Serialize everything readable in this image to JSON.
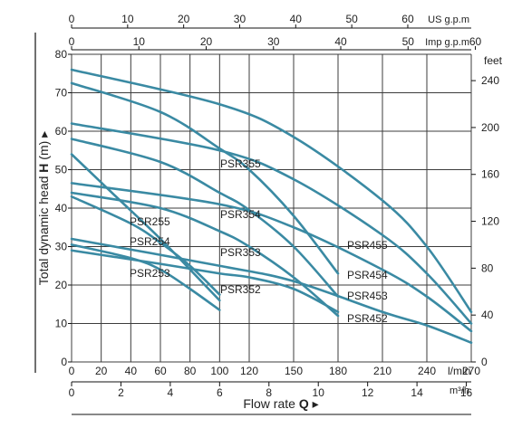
{
  "chart_data": {
    "type": "line",
    "colors": {
      "curve": "#3a8aa3",
      "grid": "#3c3c3c",
      "axis": "#111111"
    },
    "axes": {
      "x": {
        "label": "l/min",
        "ticks": [
          0,
          20,
          40,
          60,
          80,
          100,
          120,
          150,
          180,
          210,
          240,
          270
        ],
        "range": [
          0,
          270
        ]
      },
      "y": {
        "label_prefix": "Total dynamic head ",
        "label_bold": "H",
        "label_suffix": " (m) ▸",
        "ticks": [
          0,
          10,
          20,
          30,
          40,
          50,
          60,
          70,
          80
        ],
        "range": [
          0,
          80
        ]
      },
      "y_right": {
        "label": "feet",
        "ticks": [
          0,
          40,
          80,
          120,
          160,
          200,
          240
        ]
      },
      "x_us": {
        "label": "US g.p.m",
        "ticks": [
          0,
          10,
          20,
          30,
          40,
          50,
          60
        ]
      },
      "x_imp": {
        "label": "Imp g.p.m",
        "ticks": [
          0,
          10,
          20,
          30,
          40,
          50,
          60
        ]
      },
      "x_m3h": {
        "label": "m³/h",
        "ticks": [
          0,
          2,
          4,
          6,
          8,
          10,
          12,
          14,
          16
        ]
      },
      "x_title": {
        "prefix": "Flow rate ",
        "bold": "Q",
        "suffix": " ▸"
      }
    },
    "grid": true,
    "series": [
      {
        "name": "PSR253",
        "x": [
          0,
          40,
          60,
          80,
          100
        ],
        "y": [
          30.5,
          27,
          24,
          19,
          13.5
        ]
      },
      {
        "name": "PSR254",
        "x": [
          0,
          40,
          60,
          80,
          100
        ],
        "y": [
          43,
          36,
          31,
          25,
          17.5
        ]
      },
      {
        "name": "PSR255",
        "x": [
          0,
          30,
          60,
          90,
          100
        ],
        "y": [
          54,
          43,
          32,
          20,
          16
        ]
      },
      {
        "name": "PSR352",
        "x": [
          0,
          60,
          100,
          120,
          150,
          180
        ],
        "y": [
          29,
          25.5,
          23,
          22,
          19,
          13
        ]
      },
      {
        "name": "PSR353",
        "x": [
          0,
          60,
          100,
          120,
          150,
          180
        ],
        "y": [
          44,
          40,
          34,
          30,
          22,
          12
        ]
      },
      {
        "name": "PSR354",
        "x": [
          0,
          60,
          100,
          120,
          150,
          180
        ],
        "y": [
          58,
          52,
          44,
          39.5,
          30,
          17
        ]
      },
      {
        "name": "PSR355",
        "x": [
          0,
          60,
          100,
          120,
          150,
          180
        ],
        "y": [
          72.5,
          65,
          55.5,
          50,
          38,
          23
        ]
      },
      {
        "name": "PSR452",
        "x": [
          0,
          100,
          150,
          210,
          240,
          270
        ],
        "y": [
          32,
          25,
          21,
          13,
          9.5,
          5
        ]
      },
      {
        "name": "PSR453",
        "x": [
          0,
          100,
          150,
          210,
          240,
          270
        ],
        "y": [
          46.5,
          41,
          35,
          24,
          17,
          8
        ]
      },
      {
        "name": "PSR454",
        "x": [
          0,
          100,
          150,
          210,
          240,
          270
        ],
        "y": [
          62,
          55,
          47.5,
          33,
          23,
          10
        ]
      },
      {
        "name": "PSR455",
        "x": [
          0,
          100,
          150,
          210,
          240,
          270
        ],
        "y": [
          76,
          67,
          58.5,
          42,
          30,
          13
        ]
      }
    ]
  }
}
